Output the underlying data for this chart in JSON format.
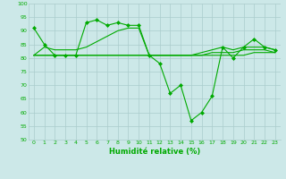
{
  "xlabel": "Humidité relative (%)",
  "background_color": "#cce8e8",
  "grid_color": "#aacccc",
  "line_color": "#00aa00",
  "xlim": [
    -0.5,
    23.5
  ],
  "ylim": [
    50,
    100
  ],
  "yticks": [
    50,
    55,
    60,
    65,
    70,
    75,
    80,
    85,
    90,
    95,
    100
  ],
  "xticks": [
    0,
    1,
    2,
    3,
    4,
    5,
    6,
    7,
    8,
    9,
    10,
    11,
    12,
    13,
    14,
    15,
    16,
    17,
    18,
    19,
    20,
    21,
    22,
    23
  ],
  "series": [
    {
      "x": [
        0,
        1,
        2,
        3,
        4,
        5,
        6,
        7,
        8,
        9,
        10,
        11,
        12,
        13,
        14,
        15,
        16,
        17,
        18,
        19,
        20,
        21,
        22,
        23
      ],
      "y": [
        91,
        85,
        81,
        81,
        81,
        93,
        94,
        92,
        93,
        92,
        92,
        81,
        78,
        67,
        70,
        57,
        60,
        66,
        84,
        80,
        84,
        87,
        84,
        83
      ],
      "marker": "D",
      "markersize": 2.0,
      "linewidth": 0.8
    },
    {
      "x": [
        0,
        1,
        2,
        3,
        4,
        5,
        6,
        7,
        8,
        9,
        10,
        11,
        12,
        13,
        14,
        15,
        16,
        17,
        18,
        19,
        20,
        21,
        22,
        23
      ],
      "y": [
        81,
        84,
        83,
        83,
        83,
        84,
        86,
        88,
        90,
        91,
        91,
        81,
        81,
        81,
        81,
        81,
        82,
        83,
        84,
        83,
        84,
        84,
        84,
        83
      ],
      "marker": null,
      "linewidth": 0.8
    },
    {
      "x": [
        0,
        1,
        2,
        3,
        4,
        5,
        6,
        7,
        8,
        9,
        10,
        11,
        12,
        13,
        14,
        15,
        16,
        17,
        18,
        19,
        20,
        21,
        22,
        23
      ],
      "y": [
        81,
        81,
        81,
        81,
        81,
        81,
        81,
        81,
        81,
        81,
        81,
        81,
        81,
        81,
        81,
        81,
        81,
        81,
        81,
        81,
        81,
        82,
        82,
        82
      ],
      "marker": null,
      "linewidth": 0.8
    },
    {
      "x": [
        0,
        1,
        2,
        3,
        4,
        5,
        6,
        7,
        8,
        9,
        10,
        11,
        12,
        13,
        14,
        15,
        16,
        17,
        18,
        19,
        20,
        21,
        22,
        23
      ],
      "y": [
        81,
        81,
        81,
        81,
        81,
        81,
        81,
        81,
        81,
        81,
        81,
        81,
        81,
        81,
        81,
        81,
        81,
        82,
        82,
        82,
        83,
        83,
        83,
        82
      ],
      "marker": null,
      "linewidth": 0.8
    }
  ]
}
